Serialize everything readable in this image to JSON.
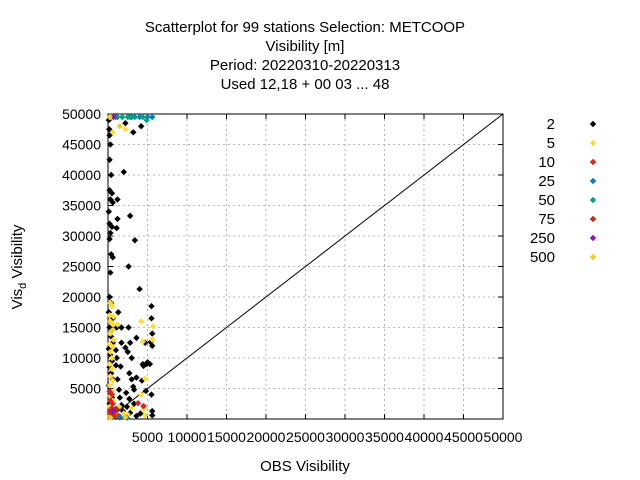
{
  "chart_data": {
    "type": "scatter",
    "title_lines": [
      "Scatterplot for   99 stations Selection: METCOOP",
      "Visibility [m]",
      "Period: 20220310-20220313",
      "Used  12,18 + 00 03 ... 48"
    ],
    "xlabel": "OBS Visibility",
    "ylabel_main": "Vis",
    "ylabel_sub": "d",
    "ylabel_rest": " Visibility",
    "xlim": [
      0,
      50000
    ],
    "ylim": [
      0,
      50000
    ],
    "x_ticks": [
      5000,
      10000,
      15000,
      20000,
      25000,
      30000,
      35000,
      40000,
      45000,
      50000
    ],
    "x_tick_labels": [
      "5000",
      "10000",
      "15000",
      "20000",
      "25000",
      "30000",
      "35000",
      "40000",
      "45000",
      "50000"
    ],
    "y_ticks": [
      5000,
      10000,
      15000,
      20000,
      25000,
      30000,
      35000,
      40000,
      45000,
      50000
    ],
    "y_tick_labels": [
      "5000",
      "10000",
      "15000",
      "20000",
      "25000",
      "30000",
      "35000",
      "40000",
      "45000",
      "50000"
    ],
    "grid": true,
    "legend_position": "outside-right",
    "diagonal": true,
    "series": [
      {
        "name": "2",
        "color": "#000000",
        "points": [
          [
            100,
            49000
          ],
          [
            150,
            47500
          ],
          [
            200,
            46500
          ],
          [
            300,
            45000
          ],
          [
            200,
            42500
          ],
          [
            400,
            40000
          ],
          [
            200,
            37500
          ],
          [
            500,
            37000
          ],
          [
            300,
            36000
          ],
          [
            600,
            35500
          ],
          [
            100,
            34000
          ],
          [
            200,
            32000
          ],
          [
            500,
            31500
          ],
          [
            300,
            30500
          ],
          [
            200,
            29500
          ],
          [
            400,
            27000
          ],
          [
            600,
            26500
          ],
          [
            300,
            24000
          ],
          [
            200,
            20000
          ],
          [
            400,
            19000
          ],
          [
            100,
            17500
          ],
          [
            600,
            16500
          ],
          [
            200,
            15000
          ],
          [
            400,
            13500
          ],
          [
            600,
            12500
          ],
          [
            100,
            11500
          ],
          [
            300,
            10500
          ],
          [
            500,
            9500
          ],
          [
            200,
            8500
          ],
          [
            400,
            7500
          ],
          [
            600,
            6500
          ],
          [
            100,
            5500
          ],
          [
            300,
            4500
          ],
          [
            500,
            3500
          ],
          [
            200,
            2500
          ],
          [
            400,
            1500
          ],
          [
            600,
            800
          ],
          [
            2200,
            48500
          ],
          [
            3200,
            47000
          ],
          [
            4200,
            48000
          ],
          [
            2000,
            40500
          ],
          [
            1200,
            36000
          ],
          [
            1200,
            32800
          ],
          [
            2800,
            33300
          ],
          [
            1100,
            31300
          ],
          [
            3400,
            29300
          ],
          [
            2600,
            25000
          ],
          [
            4000,
            21300
          ],
          [
            1300,
            17500
          ],
          [
            1100,
            15000
          ],
          [
            1700,
            15000
          ],
          [
            2600,
            15000
          ],
          [
            3600,
            13300
          ],
          [
            1700,
            12500
          ],
          [
            2800,
            12500
          ],
          [
            4700,
            12500
          ],
          [
            1000,
            11300
          ],
          [
            2500,
            11000
          ],
          [
            1100,
            10000
          ],
          [
            3000,
            10000
          ],
          [
            4400,
            9000
          ],
          [
            4900,
            9000
          ],
          [
            1000,
            8800
          ],
          [
            1600,
            8600
          ],
          [
            4500,
            8700
          ],
          [
            2700,
            7500
          ],
          [
            1200,
            6500
          ],
          [
            3000,
            6500
          ],
          [
            3600,
            6800
          ],
          [
            4300,
            6300
          ],
          [
            3200,
            5300
          ],
          [
            1400,
            4800
          ],
          [
            2300,
            4300
          ],
          [
            3300,
            4800
          ],
          [
            1500,
            3500
          ],
          [
            2700,
            3300
          ],
          [
            1700,
            2300
          ],
          [
            2400,
            2000
          ],
          [
            3300,
            2500
          ],
          [
            4500,
            2100
          ],
          [
            1000,
            1600
          ],
          [
            1900,
            1300
          ],
          [
            2800,
            1000
          ],
          [
            4100,
            900
          ],
          [
            1000,
            500
          ],
          [
            3600,
            500
          ],
          [
            1500,
            300
          ],
          [
            5500,
            18500
          ],
          [
            5500,
            16500
          ],
          [
            5600,
            14000
          ],
          [
            5400,
            12600
          ],
          [
            5600,
            12000
          ],
          [
            5300,
            9000
          ],
          [
            4800,
            4600
          ],
          [
            5500,
            4000
          ],
          [
            5600,
            1300
          ],
          [
            5600,
            600
          ],
          [
            5000,
            9300
          ],
          [
            2200,
            11700
          ]
        ]
      },
      {
        "name": "5",
        "color": "#ffdd33",
        "points": [
          [
            300,
            49500
          ],
          [
            600,
            47000
          ],
          [
            2200,
            47500
          ],
          [
            300,
            19000
          ],
          [
            500,
            18500
          ],
          [
            200,
            17000
          ],
          [
            700,
            16800
          ],
          [
            300,
            16000
          ],
          [
            600,
            15500
          ],
          [
            1200,
            15500
          ],
          [
            300,
            14000
          ],
          [
            700,
            13000
          ],
          [
            200,
            12300
          ],
          [
            600,
            11800
          ],
          [
            300,
            11000
          ],
          [
            500,
            10000
          ],
          [
            200,
            9000
          ],
          [
            500,
            8200
          ],
          [
            300,
            7000
          ],
          [
            600,
            6300
          ],
          [
            200,
            5500
          ],
          [
            500,
            4500
          ],
          [
            300,
            3800
          ],
          [
            600,
            3000
          ],
          [
            200,
            2000
          ],
          [
            500,
            1200
          ],
          [
            300,
            500
          ],
          [
            1000,
            600
          ],
          [
            2000,
            900
          ],
          [
            3000,
            1800
          ],
          [
            4500,
            1600
          ],
          [
            4700,
            600
          ],
          [
            4200,
            16000
          ],
          [
            4400,
            12700
          ],
          [
            4700,
            6600
          ],
          [
            4200,
            4000
          ],
          [
            5700,
            15200
          ],
          [
            5600,
            13000
          ],
          [
            1400,
            2000
          ],
          [
            2500,
            700
          ]
        ]
      },
      {
        "name": "10",
        "color": "#e02020",
        "points": [
          [
            200,
            4500
          ],
          [
            500,
            4000
          ],
          [
            300,
            3000
          ],
          [
            600,
            2500
          ],
          [
            200,
            1200
          ],
          [
            500,
            1800
          ],
          [
            800,
            1000
          ],
          [
            400,
            400
          ],
          [
            1300,
            500
          ],
          [
            4500,
            2100
          ],
          [
            3800,
            2600
          ]
        ]
      },
      {
        "name": "25",
        "color": "#0080c0",
        "points": [
          [
            1000,
            49500
          ],
          [
            3000,
            49500
          ],
          [
            4000,
            49500
          ],
          [
            5000,
            49500
          ],
          [
            5600,
            49500
          ],
          [
            1500,
            400
          ],
          [
            2400,
            200
          ]
        ]
      },
      {
        "name": "50",
        "color": "#00a080",
        "points": [
          [
            1200,
            49500
          ],
          [
            1800,
            49500
          ],
          [
            2500,
            49500
          ],
          [
            3400,
            49500
          ],
          [
            4400,
            49500
          ],
          [
            4900,
            49000
          ],
          [
            2800,
            49500
          ]
        ]
      },
      {
        "name": "75",
        "color": "#c03010",
        "points": [
          [
            400,
            900
          ],
          [
            700,
            400
          ],
          [
            1100,
            1600
          ]
        ]
      },
      {
        "name": "250",
        "color": "#9010c0",
        "points": [
          [
            700,
            49500
          ],
          [
            600,
            1300
          ]
        ]
      },
      {
        "name": "500",
        "color": "#eecc22",
        "points": [
          [
            200,
            49500
          ],
          [
            1500,
            48000
          ],
          [
            500,
            14500
          ],
          [
            300,
            200
          ],
          [
            2200,
            300
          ]
        ]
      }
    ]
  }
}
